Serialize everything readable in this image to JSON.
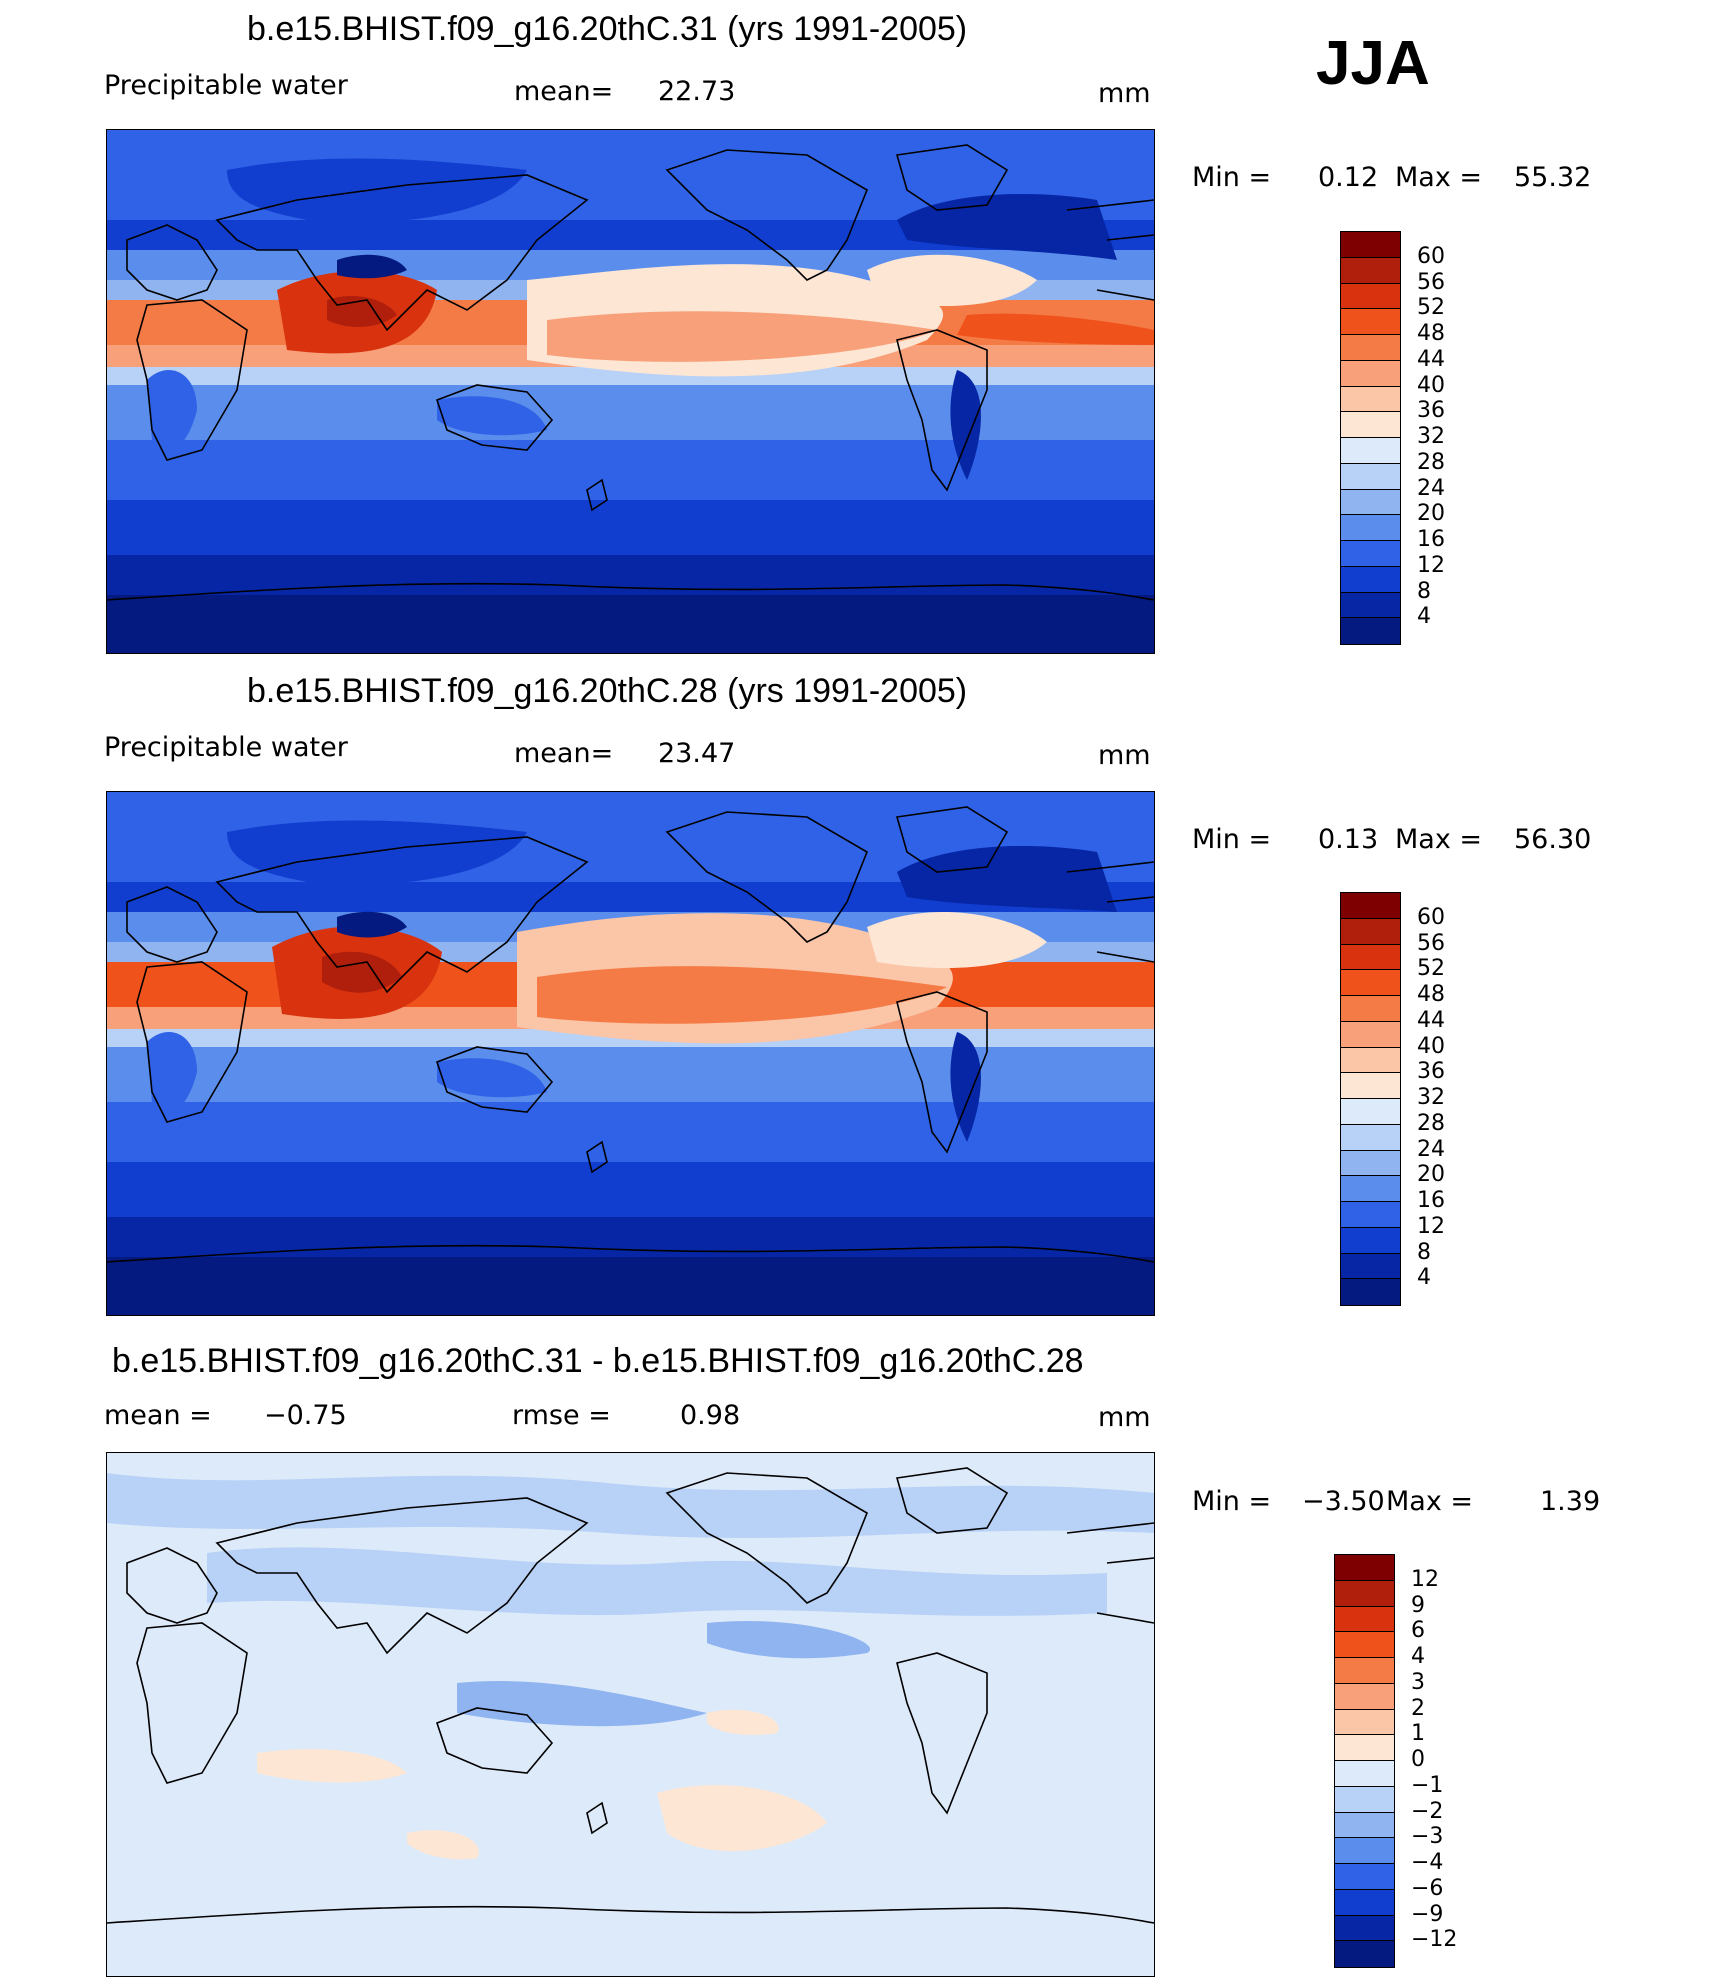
{
  "season": "JJA",
  "panels": [
    {
      "title": "b.e15.BHIST.f09_g16.20thC.31 (yrs 1991-2005)",
      "variable": "Precipitable water",
      "stat_label": "mean=",
      "stat_value": "22.73",
      "units": "mm",
      "minmax": {
        "min_label": "Min =",
        "min_value": "0.12",
        "max_label": "Max =",
        "max_value": "55.32"
      }
    },
    {
      "title": "b.e15.BHIST.f09_g16.20thC.28 (yrs 1991-2005)",
      "variable": "Precipitable water",
      "stat_label": "mean=",
      "stat_value": "23.47",
      "units": "mm",
      "minmax": {
        "min_label": "Min =",
        "min_value": "0.13",
        "max_label": "Max =",
        "max_value": "56.30"
      }
    },
    {
      "title": "b.e15.BHIST.f09_g16.20thC.31 - b.e15.BHIST.f09_g16.20thC.28",
      "mean_label": "mean =",
      "mean_value": "−0.75",
      "rmse_label": "rmse =",
      "rmse_value": "0.98",
      "units": "mm",
      "minmax": {
        "min_label": "Min =",
        "min_value": "−3.50",
        "max_label": "Max =",
        "max_value": "1.39"
      }
    }
  ],
  "colorbars": {
    "abs": {
      "labels": [
        "60",
        "56",
        "52",
        "48",
        "44",
        "40",
        "36",
        "32",
        "28",
        "24",
        "20",
        "16",
        "12",
        "8",
        "4"
      ],
      "colors": [
        "#7f0000",
        "#b01e0c",
        "#d8330e",
        "#f0521c",
        "#f47b46",
        "#f8a07a",
        "#fbc5a8",
        "#fde6d4",
        "#ddeafa",
        "#b8d1f6",
        "#8fb4f0",
        "#5b8eec",
        "#2f62e6",
        "#123ed0",
        "#0626a6",
        "#041a80"
      ]
    },
    "diff": {
      "labels": [
        "12",
        "9",
        "6",
        "4",
        "3",
        "2",
        "1",
        "0",
        "−1",
        "−2",
        "−3",
        "−4",
        "−6",
        "−9",
        "−12"
      ],
      "colors": [
        "#7f0000",
        "#b01e0c",
        "#d8330e",
        "#f0521c",
        "#f47b46",
        "#f8a07a",
        "#fbc5a8",
        "#fde6d4",
        "#ddeafa",
        "#b8d1f6",
        "#8fb4f0",
        "#5b8eec",
        "#2f62e6",
        "#123ed0",
        "#0626a6",
        "#041a80"
      ]
    }
  }
}
